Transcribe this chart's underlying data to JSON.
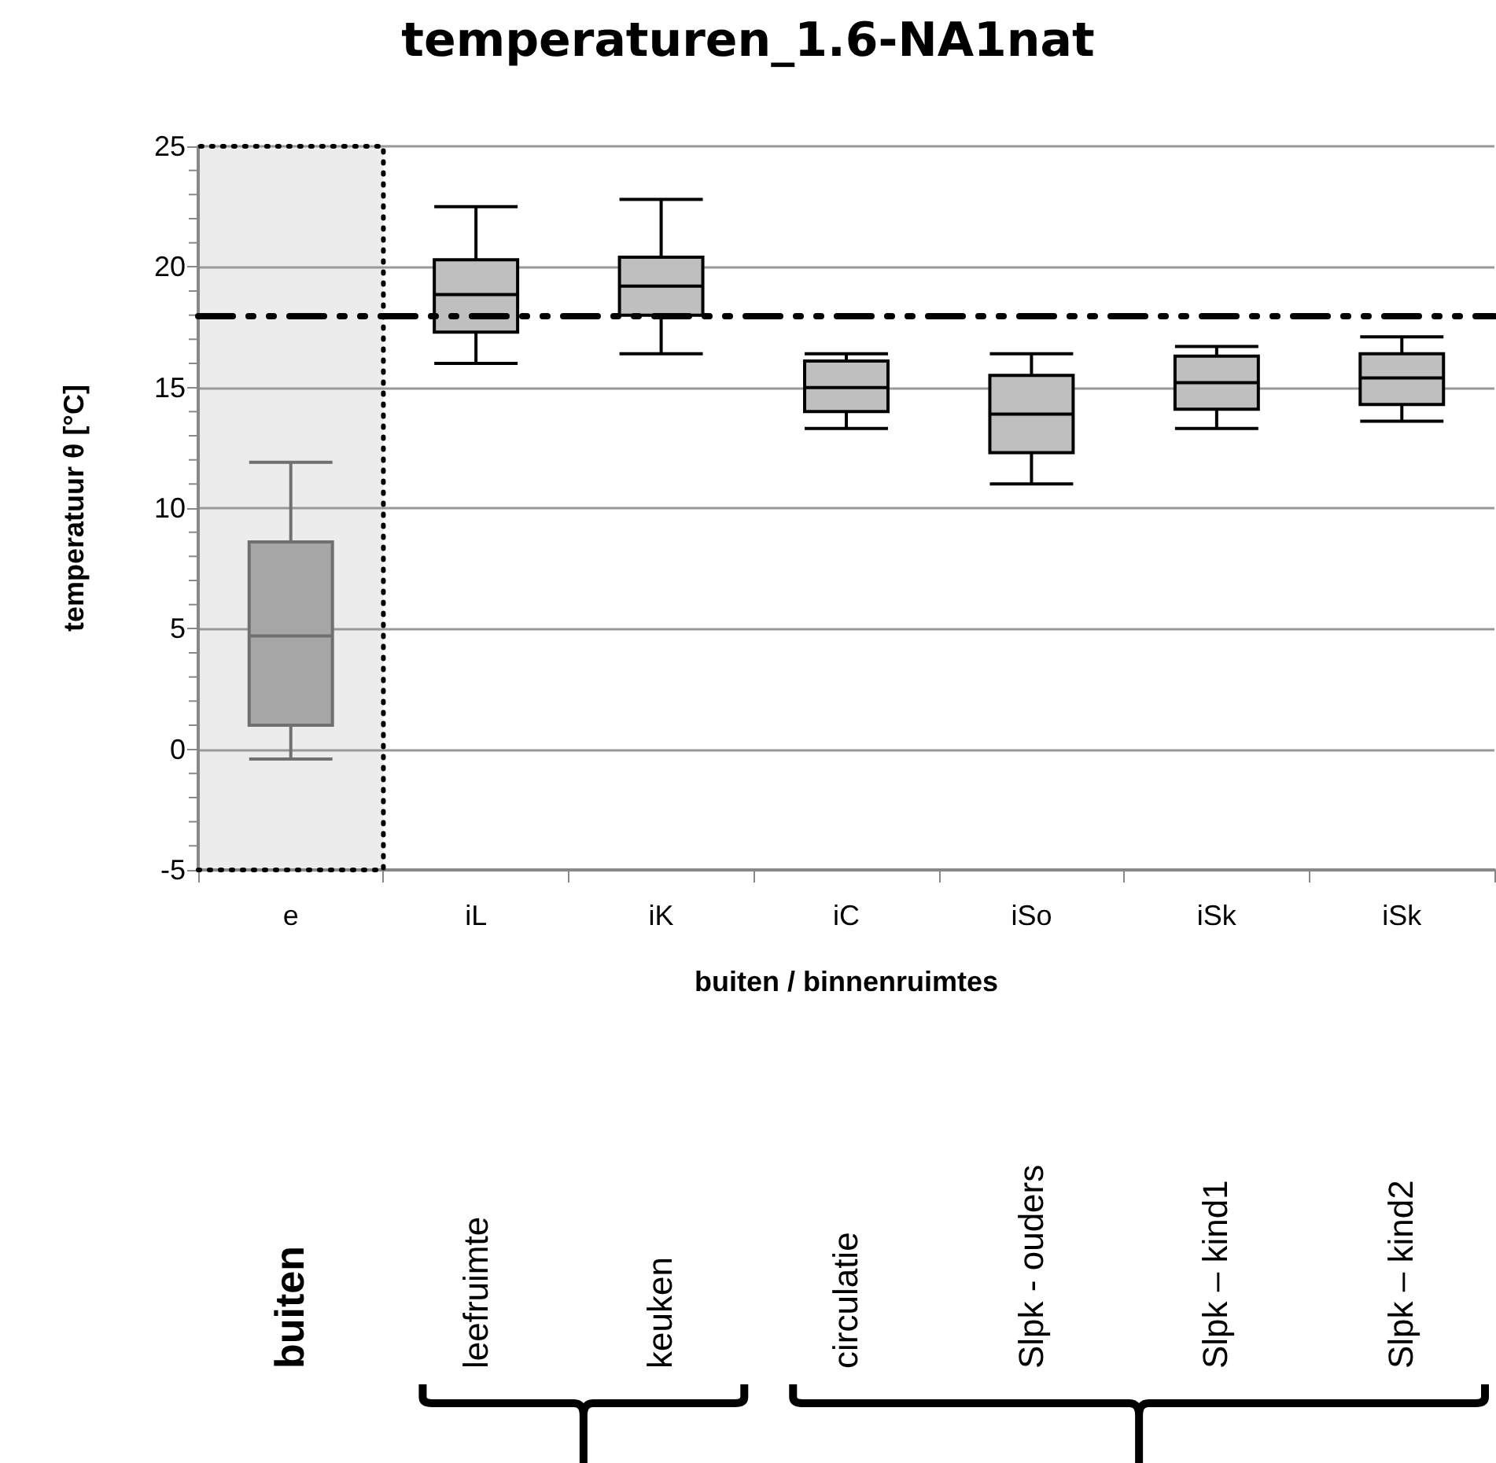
{
  "chart_data": {
    "type": "box",
    "title": "temperaturen_1.6-NA1nat",
    "xlabel": "buiten / binnenruimtes",
    "ylabel": "temperatuur θ [°C]",
    "categories": [
      "e",
      "iL",
      "iK",
      "iC",
      "iSo",
      "iSk",
      "iSk"
    ],
    "boxes": [
      {
        "low": -0.4,
        "q1": 1.0,
        "median": 4.7,
        "q3": 8.6,
        "high": 11.9
      },
      {
        "low": 16.0,
        "q1": 17.3,
        "median": 18.85,
        "q3": 20.3,
        "high": 22.5
      },
      {
        "low": 16.4,
        "q1": 18.0,
        "median": 19.2,
        "q3": 20.4,
        "high": 22.8
      },
      {
        "low": 13.3,
        "q1": 14.0,
        "median": 15.0,
        "q3": 16.1,
        "high": 16.4
      },
      {
        "low": 11.0,
        "q1": 12.3,
        "median": 13.9,
        "q3": 15.5,
        "high": 16.4
      },
      {
        "low": 13.3,
        "q1": 14.1,
        "median": 15.2,
        "q3": 16.3,
        "high": 16.7
      },
      {
        "low": 13.6,
        "q1": 14.3,
        "median": 15.4,
        "q3": 16.4,
        "high": 17.1
      }
    ],
    "colors": [
      "#a6a6a6",
      "#bfbfbf",
      "#bfbfbf",
      "#bfbfbf",
      "#bfbfbf",
      "#bfbfbf",
      "#bfbfbf"
    ],
    "ylim": [
      -5,
      25
    ],
    "yticks": [
      -5,
      {
        "value": -4,
        "label": null
      },
      {
        "value": -3,
        "label": null
      },
      {
        "value": -2,
        "label": null
      },
      {
        "value": -1,
        "label": null
      },
      0,
      {
        "value": 1,
        "label": null
      },
      {
        "value": 2,
        "label": null
      },
      {
        "value": 3,
        "label": null
      },
      {
        "value": 4,
        "label": null
      },
      5,
      {
        "value": 6,
        "label": null
      },
      {
        "value": 7,
        "label": null
      },
      {
        "value": 8,
        "label": null
      },
      {
        "value": 9,
        "label": null
      },
      10,
      {
        "value": 11,
        "label": null
      },
      {
        "value": 12,
        "label": null
      },
      {
        "value": 13,
        "label": null
      },
      {
        "value": 14,
        "label": null
      },
      15,
      {
        "value": 16,
        "label": null
      },
      {
        "value": 17,
        "label": null
      },
      {
        "value": 18,
        "label": null
      },
      {
        "value": 19,
        "label": null
      },
      20,
      {
        "value": 21,
        "label": null
      },
      {
        "value": 22,
        "label": null
      },
      {
        "value": 23,
        "label": null
      },
      {
        "value": 24,
        "label": null
      },
      25
    ],
    "grid": "y",
    "ref_lines": [
      {
        "axis": "y",
        "value": 18,
        "color": "#000000",
        "line_style": "dashed"
      }
    ],
    "bands": [
      {
        "axis": "x",
        "from": "e",
        "to": "e",
        "color": "#ececec"
      }
    ],
    "annotations": [
      "buiten",
      "leefruimte",
      "keuken",
      "circulatie",
      "Slpk - ouders",
      "Slpk – kind1",
      "Slpk – kind2"
    ]
  }
}
